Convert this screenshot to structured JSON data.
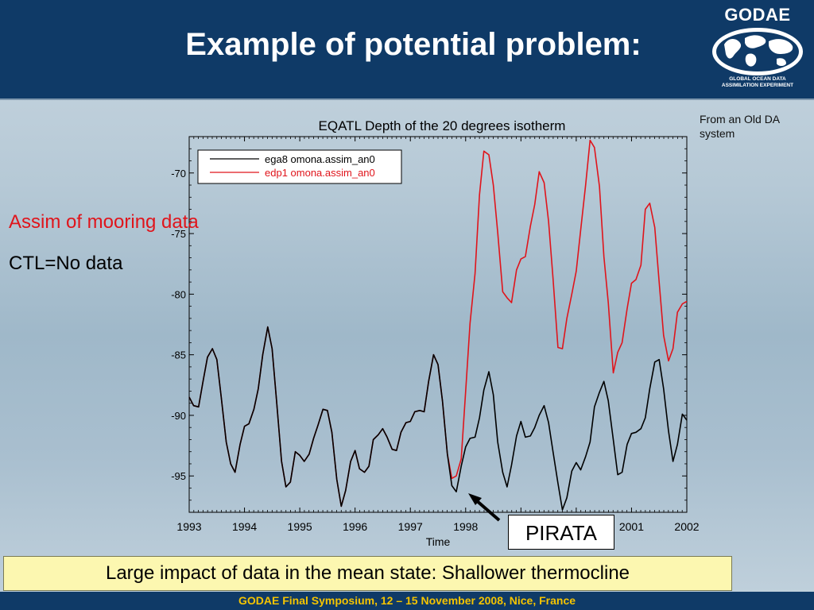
{
  "slide": {
    "title": "Example of potential problem:",
    "note": "From an Old DA system",
    "assim_label": "Assim of mooring data",
    "ctl_label": "CTL=No data",
    "pirata_label": "PIRATA",
    "caption": "Large impact of data in the mean state: Shallower thermocline",
    "footer": "GODAE Final Symposium, 12 – 15 November 2008, Nice, France"
  },
  "logo": {
    "word": "GODAE",
    "sub_line1": "GLOBAL OCEAN DATA",
    "sub_line2": "ASSIMILATION EXPERIMENT"
  },
  "colors": {
    "header_bg": "#0f3a67",
    "footer_text": "#f5c400",
    "assim_red": "#e0141b",
    "caption_bg": "#fcf7b0"
  },
  "chart_data": {
    "type": "line",
    "title": "EQATL Depth of the 20 degrees isotherm",
    "xlabel": "Time",
    "ylabel": "",
    "xlim": [
      1993,
      2002
    ],
    "ylim": [
      -98,
      -67
    ],
    "xticks": [
      "1993",
      "1994",
      "1995",
      "1996",
      "1997",
      "1998",
      "1999",
      "2000",
      "2001",
      "2002"
    ],
    "yticks": [
      -95,
      -90,
      -85,
      -80,
      -75,
      -70
    ],
    "grid": false,
    "legend_position": "top-left",
    "series": [
      {
        "name": "ega8 omona.assim_an0",
        "color": "#000000",
        "x": [
          1993.0,
          1993.08,
          1993.17,
          1993.25,
          1993.33,
          1993.42,
          1993.5,
          1993.58,
          1993.67,
          1993.75,
          1993.83,
          1993.92,
          1994.0,
          1994.08,
          1994.17,
          1994.25,
          1994.33,
          1994.42,
          1994.5,
          1994.58,
          1994.67,
          1994.75,
          1994.83,
          1994.92,
          1995.0,
          1995.08,
          1995.17,
          1995.25,
          1995.33,
          1995.42,
          1995.5,
          1995.58,
          1995.67,
          1995.75,
          1995.83,
          1995.92,
          1996.0,
          1996.08,
          1996.17,
          1996.25,
          1996.33,
          1996.42,
          1996.5,
          1996.58,
          1996.67,
          1996.75,
          1996.83,
          1996.92,
          1997.0,
          1997.08,
          1997.17,
          1997.25,
          1997.33,
          1997.42,
          1997.5,
          1997.58,
          1997.67,
          1997.75,
          1997.83,
          1997.92,
          1998.0,
          1998.08,
          1998.17,
          1998.25,
          1998.33,
          1998.42,
          1998.5,
          1998.58,
          1998.67,
          1998.75,
          1998.83,
          1998.92,
          1999.0,
          1999.08,
          1999.17,
          1999.25,
          1999.33,
          1999.42,
          1999.5,
          1999.58,
          1999.67,
          1999.75,
          1999.83,
          1999.92,
          2000.0,
          2000.08,
          2000.17,
          2000.25,
          2000.33,
          2000.42,
          2000.5,
          2000.58,
          2000.67,
          2000.75,
          2000.83,
          2000.92,
          2001.0,
          2001.08,
          2001.17,
          2001.25,
          2001.33,
          2001.42,
          2001.5,
          2001.58,
          2001.67,
          2001.75,
          2001.83,
          2001.92,
          2002.0
        ],
        "values": [
          -88.5,
          -89.2,
          -89.3,
          -87.2,
          -85.2,
          -84.5,
          -85.4,
          -88.5,
          -92.2,
          -94.0,
          -94.7,
          -92.4,
          -90.9,
          -90.7,
          -89.5,
          -87.8,
          -85.0,
          -82.7,
          -84.5,
          -88.8,
          -93.8,
          -95.9,
          -95.5,
          -93.0,
          -93.3,
          -93.8,
          -93.2,
          -91.9,
          -90.8,
          -89.5,
          -89.6,
          -91.4,
          -95.3,
          -97.5,
          -96.2,
          -93.8,
          -92.9,
          -94.4,
          -94.7,
          -94.2,
          -92.0,
          -91.6,
          -91.1,
          -91.8,
          -92.8,
          -92.9,
          -91.4,
          -90.6,
          -90.5,
          -89.7,
          -89.6,
          -89.7,
          -87.2,
          -85.0,
          -85.8,
          -88.8,
          -93.2,
          -95.8,
          -96.3,
          -94.2,
          -92.6,
          -91.9,
          -91.8,
          -90.2,
          -87.9,
          -86.4,
          -88.3,
          -92.2,
          -94.7,
          -95.9,
          -94.1,
          -91.7,
          -90.5,
          -91.8,
          -91.7,
          -91.0,
          -90.0,
          -89.2,
          -90.6,
          -93.0,
          -95.6,
          -97.8,
          -96.8,
          -94.6,
          -93.9,
          -94.5,
          -93.4,
          -92.2,
          -89.3,
          -88.1,
          -87.2,
          -88.8,
          -92.0,
          -94.9,
          -94.7,
          -92.4,
          -91.5,
          -91.4,
          -91.1,
          -90.2,
          -87.8,
          -85.6,
          -85.4,
          -87.8,
          -91.3,
          -93.8,
          -92.4,
          -89.9,
          -90.4
        ]
      },
      {
        "name": "edp1 omona.assim_an0",
        "color": "#e0141b",
        "x": [
          1993.0,
          1993.08,
          1993.17,
          1993.25,
          1993.33,
          1993.42,
          1993.5,
          1993.58,
          1993.67,
          1993.75,
          1993.83,
          1993.92,
          1994.0,
          1994.08,
          1994.17,
          1994.25,
          1994.33,
          1994.42,
          1994.5,
          1994.58,
          1994.67,
          1994.75,
          1994.83,
          1994.92,
          1995.0,
          1995.08,
          1995.17,
          1995.25,
          1995.33,
          1995.42,
          1995.5,
          1995.58,
          1995.67,
          1995.75,
          1995.83,
          1995.92,
          1996.0,
          1996.08,
          1996.17,
          1996.25,
          1996.33,
          1996.42,
          1996.5,
          1996.58,
          1996.67,
          1996.75,
          1996.83,
          1996.92,
          1997.0,
          1997.08,
          1997.17,
          1997.25,
          1997.33,
          1997.42,
          1997.5,
          1997.58,
          1997.67,
          1997.75,
          1997.83,
          1997.92,
          1998.0,
          1998.08,
          1998.17,
          1998.25,
          1998.33,
          1998.42,
          1998.5,
          1998.58,
          1998.67,
          1998.75,
          1998.83,
          1998.92,
          1999.0,
          1999.08,
          1999.17,
          1999.25,
          1999.33,
          1999.42,
          1999.5,
          1999.58,
          1999.67,
          1999.75,
          1999.83,
          1999.92,
          2000.0,
          2000.08,
          2000.17,
          2000.25,
          2000.33,
          2000.42,
          2000.5,
          2000.58,
          2000.67,
          2000.75,
          2000.83,
          2000.92,
          2001.0,
          2001.08,
          2001.17,
          2001.25,
          2001.33,
          2001.42,
          2001.5,
          2001.58,
          2001.67,
          2001.75,
          2001.83,
          2001.92,
          2002.0
        ],
        "values": [
          -88.5,
          -89.2,
          -89.3,
          -87.2,
          -85.2,
          -84.5,
          -85.4,
          -88.5,
          -92.2,
          -94.0,
          -94.7,
          -92.4,
          -90.9,
          -90.7,
          -89.5,
          -87.8,
          -85.0,
          -82.7,
          -84.5,
          -88.8,
          -93.8,
          -95.9,
          -95.5,
          -93.0,
          -93.3,
          -93.8,
          -93.2,
          -91.9,
          -90.8,
          -89.5,
          -89.6,
          -91.4,
          -95.3,
          -97.5,
          -96.2,
          -93.8,
          -92.9,
          -94.4,
          -94.7,
          -94.2,
          -92.0,
          -91.6,
          -91.1,
          -91.8,
          -92.8,
          -92.9,
          -91.4,
          -90.6,
          -90.5,
          -89.7,
          -89.6,
          -89.7,
          -87.2,
          -85.0,
          -85.8,
          -88.8,
          -93.2,
          -95.2,
          -95.0,
          -93.6,
          -88.0,
          -82.4,
          -78.3,
          -71.8,
          -68.2,
          -68.5,
          -71.0,
          -74.9,
          -79.8,
          -80.3,
          -80.7,
          -78.0,
          -77.1,
          -76.9,
          -74.4,
          -72.6,
          -69.9,
          -70.8,
          -74.0,
          -78.7,
          -84.4,
          -84.5,
          -82.0,
          -80.0,
          -78.1,
          -74.7,
          -71.0,
          -67.3,
          -67.9,
          -71.1,
          -76.9,
          -80.7,
          -86.5,
          -84.8,
          -84.0,
          -81.2,
          -79.1,
          -78.8,
          -77.6,
          -73.0,
          -72.5,
          -74.5,
          -79.0,
          -83.4,
          -85.5,
          -84.5,
          -81.5,
          -80.8,
          -80.6
        ]
      }
    ]
  }
}
